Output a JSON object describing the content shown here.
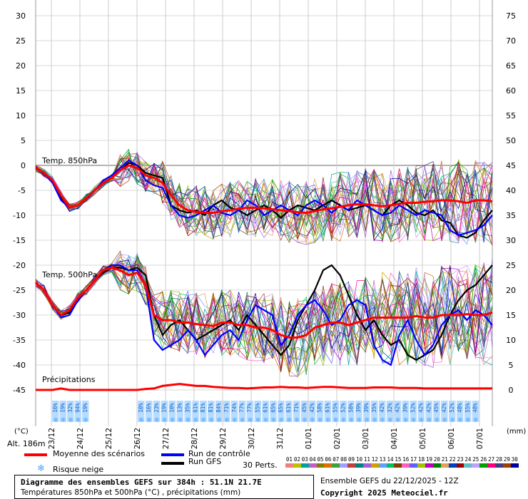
{
  "chart_data": {
    "type": "line",
    "title": "Diagramme des ensembles GEFS sur 384h : 51.1N 21.7E",
    "subtitle": "Températures 850hPa et 500hPa (°C) , précipitations (mm)",
    "left_axis_label": "(°C)",
    "right_axis_label": "(mm)",
    "altitude": "Alt. 186m",
    "left_ticks": [
      30,
      25,
      20,
      15,
      10,
      5,
      0,
      -5,
      -10,
      -15,
      -20,
      -25,
      -30,
      -35,
      -40,
      -45
    ],
    "right_ticks": [
      75,
      70,
      65,
      60,
      55,
      50,
      45,
      40,
      35,
      30,
      25,
      20,
      15,
      10,
      5,
      0
    ],
    "ylim": [
      -45,
      30
    ],
    "xlim_hours": [
      0,
      384
    ],
    "date_labels": [
      "23/12",
      "24/12",
      "25/12",
      "26/12",
      "27/12",
      "28/12",
      "29/12",
      "30/12",
      "31/12",
      "01/01",
      "02/01",
      "03/01",
      "04/01",
      "05/01",
      "06/01",
      "07/01"
    ],
    "panel_labels": [
      "Temp. 850hPa",
      "Temp. 500hPa",
      "Précipitations"
    ],
    "snow_risk_labels": [
      "16%",
      "19%",
      "32%",
      "94%",
      "19%",
      "10%",
      "16%",
      "23%",
      "19%",
      "10%",
      "13%",
      "35%",
      "61%",
      "81%",
      "81%",
      "84%",
      "71%",
      "74%",
      "77%",
      "77%",
      "55%",
      "61%",
      "65%",
      "65%",
      "61%",
      "71%",
      "45%",
      "42%",
      "58%",
      "61%",
      "55%",
      "52%",
      "58%",
      "39%",
      "39%",
      "35%",
      "42%",
      "32%",
      "42%",
      "39%",
      "52%",
      "42%",
      "42%",
      "45%",
      "42%",
      "52%",
      "48%",
      "55%",
      "48%"
    ],
    "series": [
      {
        "name": "Moyenne des scénarios",
        "color": "#ff0000",
        "t850": [
          -0.5,
          -1.5,
          -3,
          -6,
          -8.5,
          -8,
          -6.5,
          -5,
          -3.5,
          -2.5,
          -1,
          0,
          -0.5,
          -2,
          -2.5,
          -3.5,
          -6,
          -8,
          -9,
          -9.3,
          -9.5,
          -9.5,
          -9.2,
          -9,
          -8.7,
          -8.5,
          -8.5,
          -8.6,
          -8.8,
          -9,
          -9.2,
          -9.4,
          -9.5,
          -9.2,
          -8.8,
          -8.6,
          -8.3,
          -8,
          -7.8,
          -7.8,
          -8,
          -8.2,
          -8,
          -7.7,
          -7.5,
          -7.5,
          -7.3,
          -7.2,
          -7,
          -7,
          -7.2,
          -7.5,
          -7,
          -7,
          -7.2
        ],
        "t500": [
          -23.5,
          -25,
          -28,
          -30,
          -29,
          -26.5,
          -25,
          -23,
          -21,
          -20.5,
          -21,
          -22,
          -21.5,
          -24,
          -30,
          -31,
          -31,
          -31.5,
          -31.5,
          -31.8,
          -32,
          -32.2,
          -31.5,
          -31.5,
          -32,
          -32,
          -32.5,
          -32.5,
          -33,
          -34,
          -34.5,
          -34.5,
          -34,
          -32.5,
          -32,
          -31.5,
          -31.5,
          -32,
          -31.5,
          -31,
          -30.5,
          -30.5,
          -30.5,
          -30.5,
          -30.5,
          -30.2,
          -30.5,
          -30.5,
          -30,
          -30,
          -30,
          -29.8,
          -30,
          -30,
          -29.5
        ],
        "precip": [
          0,
          0,
          0,
          0.3,
          0,
          0,
          0,
          0,
          0,
          0,
          0,
          0,
          0,
          0.2,
          0.3,
          0.8,
          1,
          1.2,
          1,
          0.8,
          0.8,
          0.6,
          0.5,
          0.4,
          0.4,
          0.3,
          0.4,
          0.5,
          0.5,
          0.6,
          0.5,
          0.5,
          0.4,
          0.5,
          0.6,
          0.6,
          0.5,
          0.4,
          0.4,
          0.4,
          0.5,
          0.5,
          0.5,
          0.4,
          0.4,
          0.4,
          0.3,
          0.3,
          0.3,
          0.3,
          0.3,
          0.3,
          0.3,
          0.3,
          0.3
        ]
      },
      {
        "name": "Run de contrôle",
        "color": "#0000ff",
        "t850": [
          -0.5,
          -1.5,
          -3.5,
          -7,
          -8.5,
          -8,
          -6.5,
          -5,
          -3,
          -2,
          -0.5,
          1,
          0,
          -3,
          -4,
          -4.5,
          -8,
          -10,
          -10.5,
          -10,
          -9,
          -8,
          -9.5,
          -10,
          -9,
          -7,
          -8,
          -10,
          -9,
          -8,
          -9,
          -10,
          -8,
          -7,
          -8,
          -9.5,
          -8,
          -9,
          -7,
          -8,
          -9,
          -10,
          -9.5,
          -8,
          -9,
          -10,
          -9,
          -9.5,
          -10,
          -13,
          -14,
          -13.5,
          -13,
          -12,
          -10
        ],
        "t500": [
          -23.5,
          -25,
          -28,
          -30.5,
          -30,
          -27,
          -25,
          -23,
          -21,
          -20,
          -20,
          -21,
          -21,
          -24,
          -35,
          -37,
          -36,
          -35,
          -33,
          -35,
          -38,
          -36,
          -34,
          -33,
          -35,
          -31,
          -28,
          -29,
          -30,
          -36,
          -34,
          -30,
          -28,
          -27,
          -29,
          -32,
          -31,
          -28,
          -27,
          -28,
          -36,
          -39,
          -40,
          -34,
          -31,
          -35,
          -38,
          -36,
          -32,
          -30,
          -29,
          -31,
          -29,
          -30,
          -32
        ]
      },
      {
        "name": "Run GFS",
        "color": "#000000",
        "t850": [
          -0.5,
          -1.5,
          -3.2,
          -6.5,
          -8.5,
          -8,
          -6.5,
          -5,
          -3.5,
          -2.5,
          -1,
          0.5,
          0,
          -1.5,
          -2,
          -2.5,
          -8,
          -9,
          -9.5,
          -9,
          -10,
          -8,
          -7,
          -8.5,
          -9,
          -10,
          -9,
          -8,
          -9,
          -10.5,
          -9,
          -8,
          -8.5,
          -9,
          -8,
          -7,
          -8,
          -9,
          -8.5,
          -8,
          -9,
          -10,
          -8,
          -7,
          -8,
          -9.5,
          -10,
          -9,
          -11,
          -11.5,
          -14,
          -14.5,
          -13.5,
          -11,
          -9
        ],
        "t500": [
          -23.5,
          -25,
          -28,
          -30,
          -29.5,
          -26.5,
          -25,
          -23,
          -21.5,
          -20.5,
          -20.5,
          -21,
          -20.5,
          -22,
          -30,
          -34,
          -32,
          -31,
          -33,
          -35,
          -34,
          -33,
          -32,
          -31,
          -33,
          -30,
          -32,
          -34,
          -36,
          -38,
          -36,
          -31,
          -28,
          -25,
          -21,
          -20,
          -22,
          -26,
          -30,
          -33,
          -31,
          -34,
          -36,
          -35,
          -38,
          -39,
          -38,
          -37,
          -34,
          -30,
          -27,
          -25,
          -24,
          -22,
          -20
        ]
      }
    ],
    "legend": {
      "mean": "Moyenne des scénarios",
      "control": "Run de contrôle",
      "gfs": "Run GFS",
      "snow": "Risque neige",
      "perts": "30 Perts.",
      "pert_numbers": [
        "01",
        "02",
        "03",
        "04",
        "05",
        "06",
        "07",
        "08",
        "09",
        "10",
        "11",
        "12",
        "13",
        "14",
        "15",
        "16",
        "17",
        "18",
        "19",
        "20",
        "21",
        "22",
        "23",
        "24",
        "25",
        "26",
        "27",
        "28",
        "29",
        "30"
      ],
      "pert_colors": [
        "#f08080",
        "#c0c000",
        "#00a0a0",
        "#c060c0",
        "#808000",
        "#e07000",
        "#40a040",
        "#a0a0ff",
        "#c04040",
        "#008080",
        "#a060e0",
        "#d0a000",
        "#60a0ff",
        "#00c060",
        "#804000",
        "#ff60c0",
        "#6060ff",
        "#a0c000",
        "#c000c0",
        "#008000",
        "#e0a060",
        "#0040c0",
        "#a00000",
        "#60c0c0",
        "#c0a0ff",
        "#00a000",
        "#ff0080",
        "#404080",
        "#a04000",
        "#0000a0"
      ]
    },
    "ensemble_info": "Ensemble GEFS du 22/12/2025 - 12Z",
    "copyright": "Copyright 2025 Meteociel.fr"
  },
  "colors": {
    "mean": "#ff0000",
    "control": "#0000ff",
    "gfs": "#000000",
    "snow": "#4da6ff",
    "snow_bg": "#b8dcff"
  }
}
